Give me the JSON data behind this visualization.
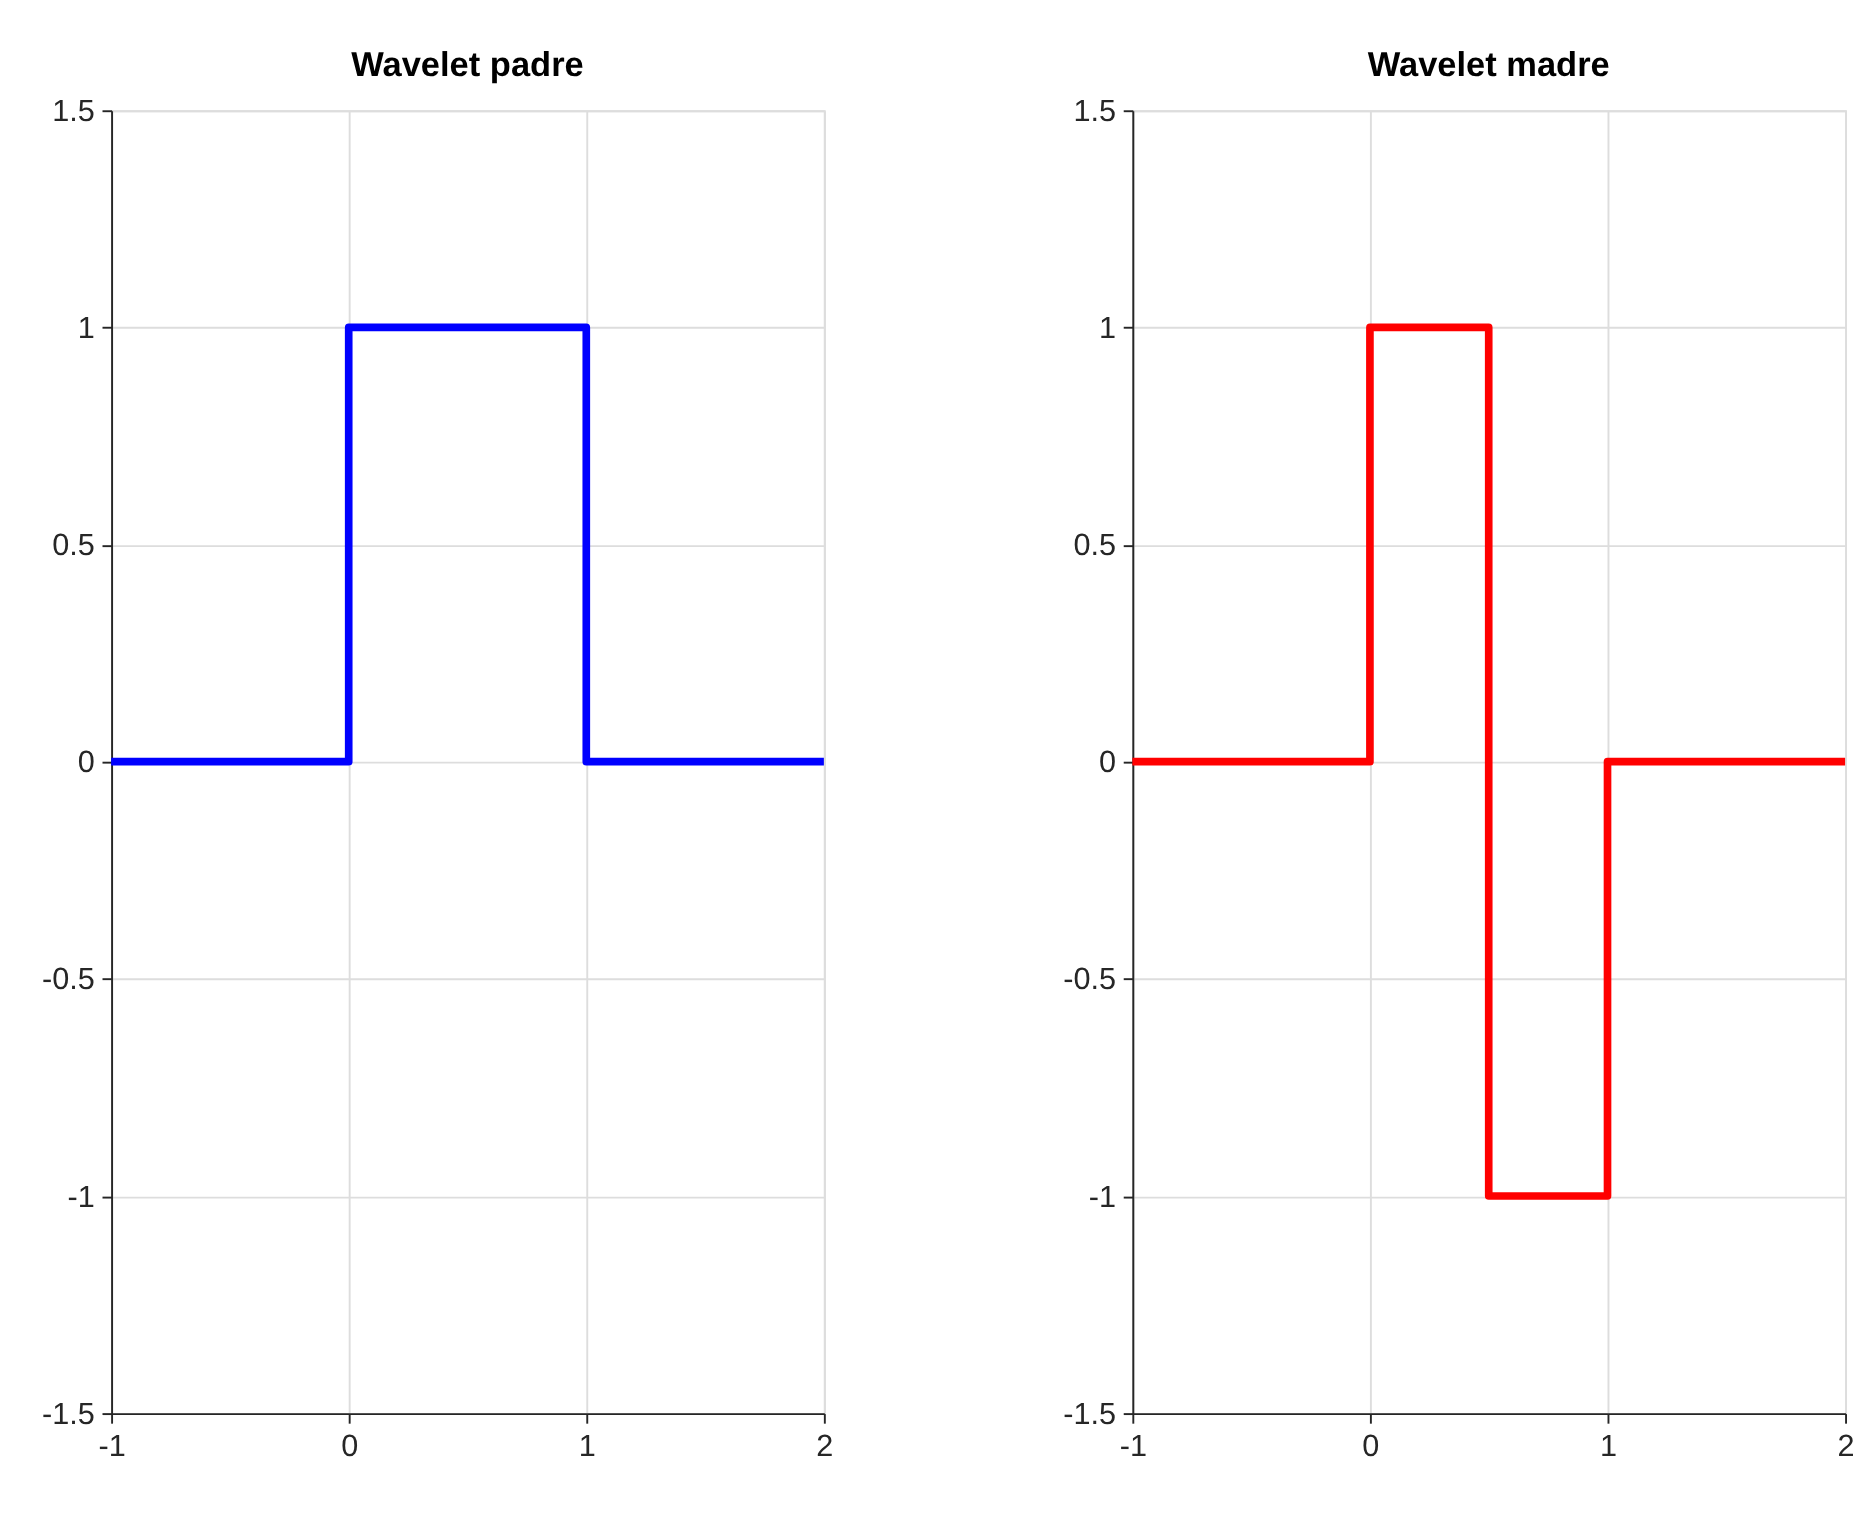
{
  "chart_data": [
    {
      "type": "line",
      "title": "Wavelet padre",
      "x": [
        -1,
        0,
        0,
        1,
        1,
        2
      ],
      "series": [
        {
          "color": "#0000ff",
          "values": [
            0,
            0,
            1,
            1,
            0,
            0
          ]
        }
      ],
      "xlim": [
        -1,
        2
      ],
      "xticks": [
        -1,
        0,
        1,
        2
      ],
      "ylim": [
        -1.5,
        1.5
      ],
      "yticks": [
        -1.5,
        -1,
        -0.5,
        0,
        0.5,
        1,
        1.5
      ],
      "grid": true,
      "line_style": "solid"
    },
    {
      "type": "line",
      "title": "Wavelet madre",
      "x": [
        -1,
        0,
        0,
        0.5,
        0.5,
        1,
        1,
        2
      ],
      "series": [
        {
          "color": "#ff0000",
          "values": [
            0,
            0,
            1,
            1,
            -1,
            -1,
            0,
            0
          ]
        }
      ],
      "xlim": [
        -1,
        2
      ],
      "xticks": [
        -1,
        0,
        1,
        2
      ],
      "ylim": [
        -1.5,
        1.5
      ],
      "yticks": [
        -1.5,
        -1,
        -0.5,
        0,
        0.5,
        1,
        1.5
      ],
      "grid": true,
      "line_style": "solid"
    }
  ]
}
